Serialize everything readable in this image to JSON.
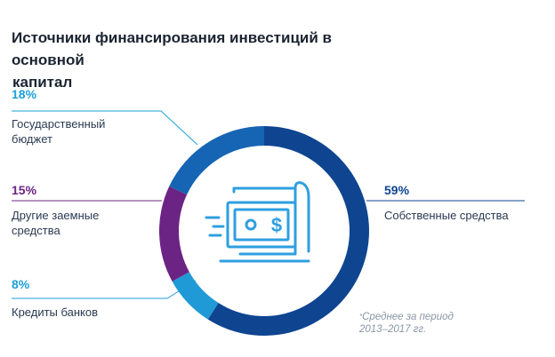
{
  "title_line1": "Источники финансирования инвестиций в основной",
  "title_line2": "капитал",
  "chart_data": {
    "type": "pie",
    "donut": true,
    "series": [
      {
        "label": "Собственные средства",
        "value": 59,
        "value_label": "59%",
        "color": "#0f4590"
      },
      {
        "label": "Кредиты банков",
        "value": 8,
        "value_label": "8%",
        "color": "#1f9ad6"
      },
      {
        "label": "Другие заемные средства",
        "value": 15,
        "value_label": "15%",
        "color": "#6c2484"
      },
      {
        "label": "Государственный бюджет",
        "value": 18,
        "value_label": "18%",
        "color": "#1665b4"
      }
    ]
  },
  "labels": {
    "budget_pct": "18%",
    "budget_line1": "Государственный",
    "budget_line2": "бюджет",
    "other_pct": "15%",
    "other_line1": "Другие заемные",
    "other_line2": "средства",
    "credits_pct": "8%",
    "credits_line1": "Кредиты банков",
    "own_pct": "59%",
    "own_line1": "Собственные средства"
  },
  "note_mark": "*",
  "note_line1": "Среднее за период",
  "note_line2": "2013–2017 гг.",
  "colors": {
    "accent_teal": "#1d9fd8",
    "accent_purple": "#6c2484",
    "icon_blue": "#2e9fe0"
  },
  "icon": "money-bill-icon"
}
